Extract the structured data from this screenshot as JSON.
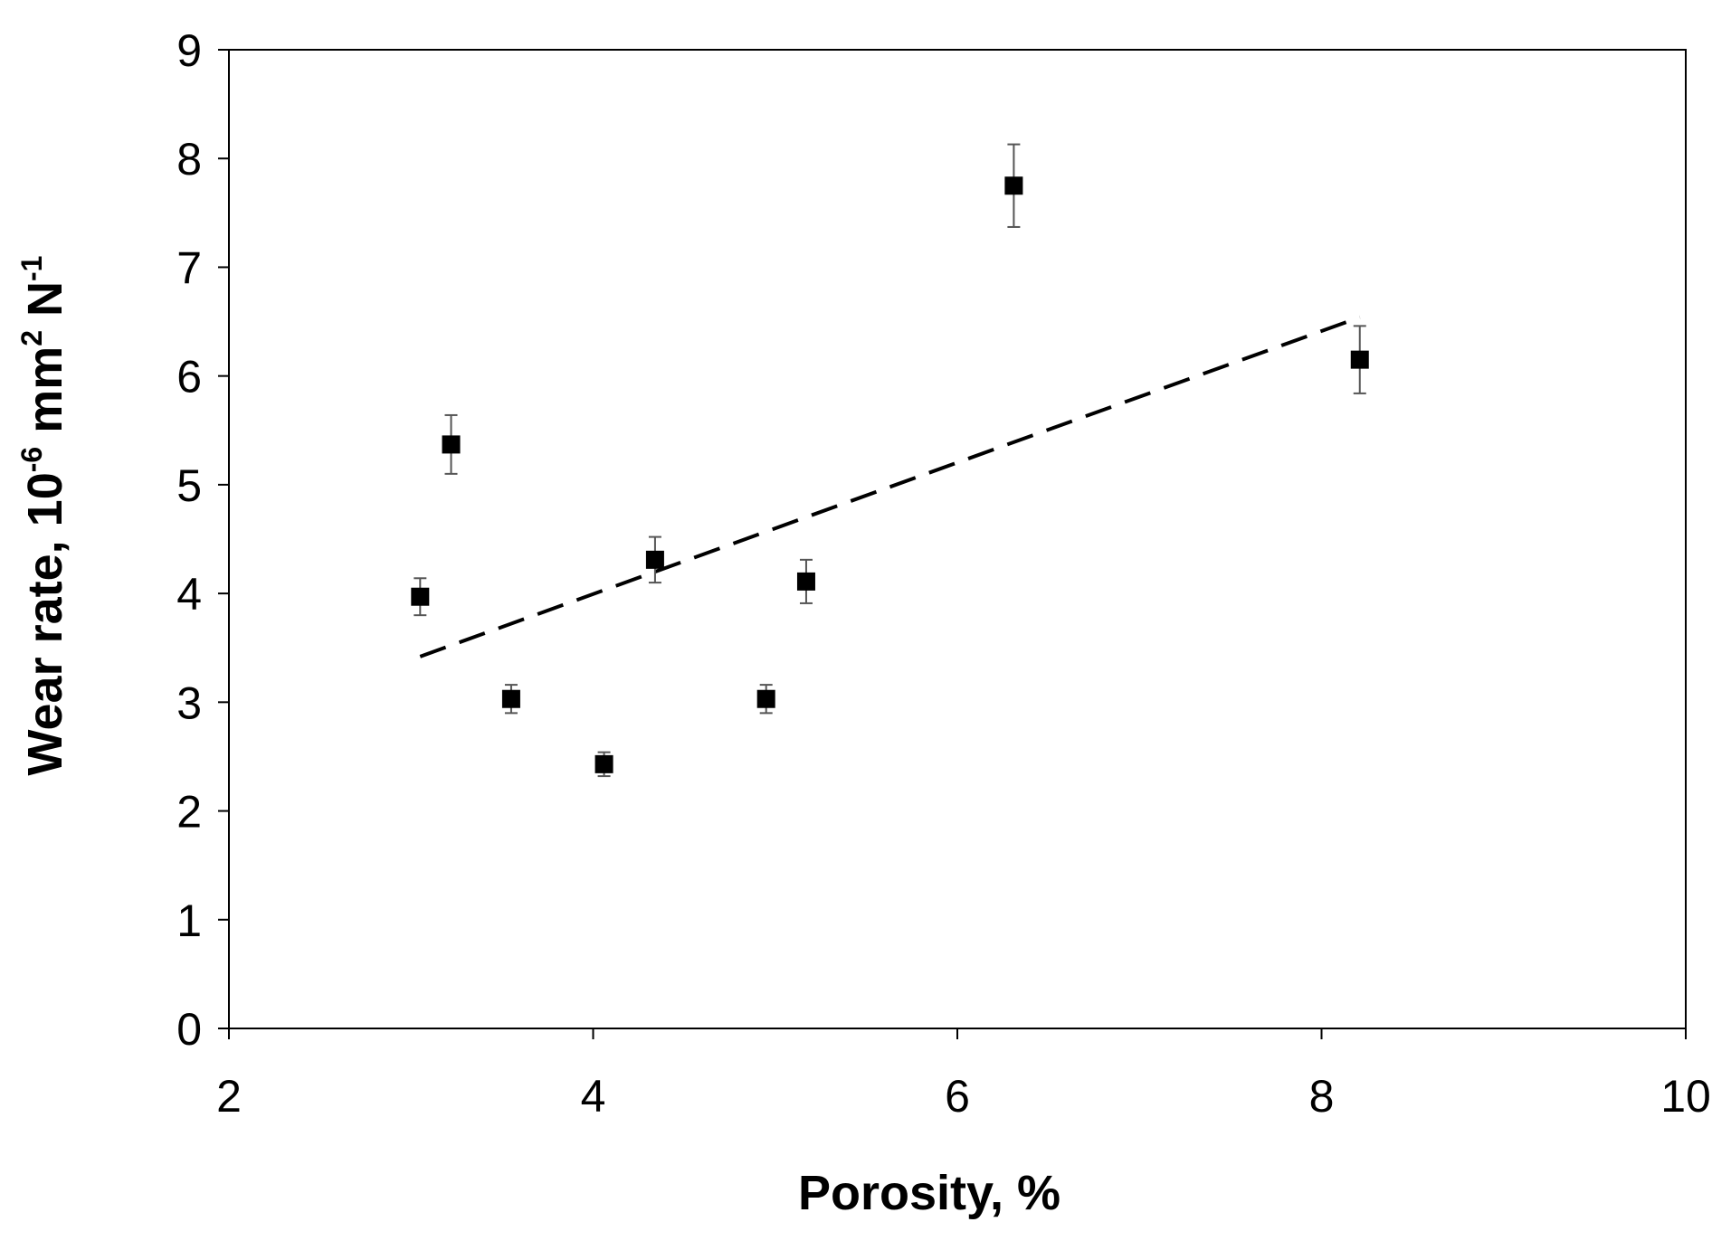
{
  "chart_data": {
    "type": "scatter",
    "xlabel": "Porosity, %",
    "ylabel": {
      "prefix": "Wear rate, 10",
      "exp1": "-6",
      "mid": " mm",
      "exp2": "2",
      "mid2": "  N",
      "exp3": "-1"
    },
    "xlim": [
      2,
      10
    ],
    "ylim": [
      0,
      9
    ],
    "x_ticks": [
      2,
      4,
      6,
      8,
      10
    ],
    "y_ticks": [
      0,
      1,
      2,
      3,
      4,
      5,
      6,
      7,
      8,
      9
    ],
    "grid": false,
    "legend": "none",
    "marker": "square",
    "marker_color": "#000000",
    "series": [
      {
        "points": [
          {
            "x": 3.05,
            "y": 3.97,
            "err": 0.17
          },
          {
            "x": 3.22,
            "y": 5.37,
            "err": 0.27
          },
          {
            "x": 3.55,
            "y": 3.03,
            "err": 0.13
          },
          {
            "x": 4.06,
            "y": 2.43,
            "err": 0.11
          },
          {
            "x": 4.34,
            "y": 4.31,
            "err": 0.21
          },
          {
            "x": 4.95,
            "y": 3.03,
            "err": 0.13
          },
          {
            "x": 5.17,
            "y": 4.11,
            "err": 0.2
          },
          {
            "x": 6.31,
            "y": 7.75,
            "err": 0.38
          },
          {
            "x": 8.21,
            "y": 6.15,
            "err": 0.31
          }
        ]
      }
    ],
    "trendline": {
      "style": "dashed",
      "color": "#000000",
      "x": [
        3.05,
        8.21
      ],
      "y": [
        3.42,
        6.54
      ]
    }
  }
}
